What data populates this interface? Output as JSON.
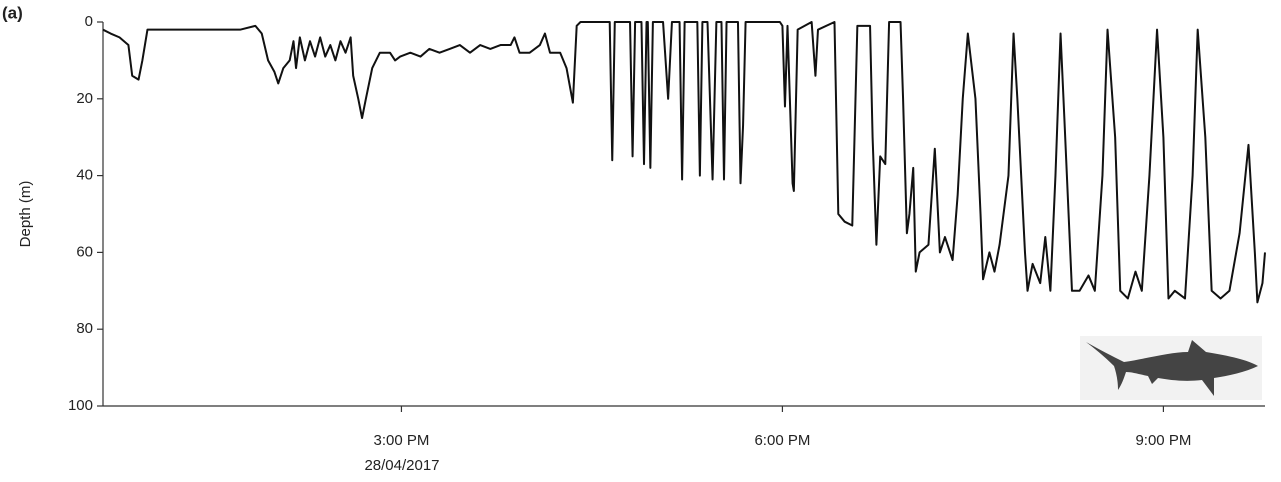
{
  "chart_data": {
    "type": "line",
    "panel_label": "(a)",
    "y_label": "Depth (m)",
    "x_date_label": "28/04/2017",
    "xlim": [
      12.65,
      21.8
    ],
    "xticks": [
      {
        "value": 15,
        "label": "3:00 PM"
      },
      {
        "value": 18,
        "label": "6:00 PM"
      },
      {
        "value": 21,
        "label": "9:00 PM"
      }
    ],
    "ylim": [
      0,
      100
    ],
    "yticks": [
      0,
      20,
      40,
      60,
      80,
      100
    ],
    "y_inverted": true,
    "series": [
      {
        "color": "#111111",
        "x": [
          12.65,
          12.71,
          12.78,
          12.85,
          12.88,
          12.93,
          12.96,
          13.0,
          13.1,
          13.41,
          13.73,
          13.85,
          13.9,
          13.95,
          14.0,
          14.03,
          14.07,
          14.12,
          14.15,
          14.17,
          14.2,
          14.24,
          14.28,
          14.32,
          14.36,
          14.4,
          14.44,
          14.48,
          14.52,
          14.56,
          14.6,
          14.62,
          14.66,
          14.69,
          14.72,
          14.77,
          14.83,
          14.91,
          14.95,
          14.99,
          15.07,
          15.15,
          15.22,
          15.3,
          15.38,
          15.46,
          15.54,
          15.62,
          15.7,
          15.78,
          15.86,
          15.89,
          15.93,
          16.01,
          16.09,
          16.13,
          16.17,
          16.25,
          16.3,
          16.35,
          16.38,
          16.41,
          16.64,
          16.66,
          16.68,
          16.8,
          16.82,
          16.84,
          16.89,
          16.91,
          16.93,
          16.94,
          16.96,
          16.98,
          17.06,
          17.1,
          17.13,
          17.19,
          17.21,
          17.23,
          17.33,
          17.35,
          17.37,
          17.41,
          17.45,
          17.48,
          17.52,
          17.54,
          17.56,
          17.65,
          17.67,
          17.69,
          17.71,
          17.98,
          18.0,
          18.02,
          18.04,
          18.08,
          18.09,
          18.12,
          18.23,
          18.26,
          18.28,
          18.41,
          18.44,
          18.49,
          18.55,
          18.59,
          18.69,
          18.71,
          18.74,
          18.77,
          18.81,
          18.84,
          18.93,
          18.95,
          18.98,
          19.0,
          19.03,
          19.05,
          19.08,
          19.15,
          19.2,
          19.24,
          19.28,
          19.34,
          19.38,
          19.42,
          19.46,
          19.52,
          19.56,
          19.58,
          19.63,
          19.67,
          19.71,
          19.78,
          19.82,
          19.85,
          19.91,
          19.93,
          19.97,
          20.03,
          20.07,
          20.11,
          20.15,
          20.19,
          20.22,
          20.28,
          20.34,
          20.41,
          20.46,
          20.52,
          20.56,
          20.62,
          20.66,
          20.72,
          20.78,
          20.83,
          20.89,
          20.95,
          21.0,
          21.04,
          21.09,
          21.17,
          21.23,
          21.27,
          21.33,
          21.38,
          21.45,
          21.52,
          21.6,
          21.67,
          21.72,
          21.74,
          21.78,
          21.8
        ],
        "values": [
          2,
          3,
          4,
          6,
          14,
          15,
          10,
          2,
          2,
          2,
          2,
          1,
          3,
          10,
          13,
          16,
          12,
          10,
          5,
          12,
          4,
          10,
          5,
          9,
          4,
          9,
          6,
          10,
          5,
          8,
          4,
          14,
          20,
          25,
          20,
          12,
          8,
          8,
          10,
          9,
          8,
          9,
          7,
          8,
          7,
          6,
          8,
          6,
          7,
          6,
          6,
          4,
          8,
          8,
          6,
          3,
          8,
          8,
          12,
          21,
          1,
          0,
          0,
          36,
          0,
          0,
          35,
          0,
          0,
          37,
          0,
          0,
          38,
          0,
          0,
          20,
          0,
          0,
          41,
          0,
          0,
          40,
          0,
          0,
          41,
          0,
          0,
          41,
          0,
          0,
          42,
          27,
          0,
          0,
          1,
          22,
          1,
          42,
          44,
          2,
          0,
          14,
          2,
          0,
          50,
          52,
          53,
          1,
          1,
          30,
          58,
          35,
          37,
          0,
          0,
          20,
          55,
          50,
          38,
          65,
          60,
          58,
          33,
          60,
          56,
          62,
          45,
          20,
          3,
          20,
          50,
          67,
          60,
          65,
          58,
          40,
          3,
          20,
          60,
          70,
          63,
          68,
          56,
          70,
          40,
          3,
          25,
          70,
          70,
          66,
          70,
          40,
          2,
          30,
          70,
          72,
          65,
          70,
          40,
          2,
          30,
          72,
          70,
          72,
          40,
          2,
          30,
          70,
          72,
          70,
          55,
          32,
          60,
          73,
          68,
          60
        ]
      }
    ]
  }
}
